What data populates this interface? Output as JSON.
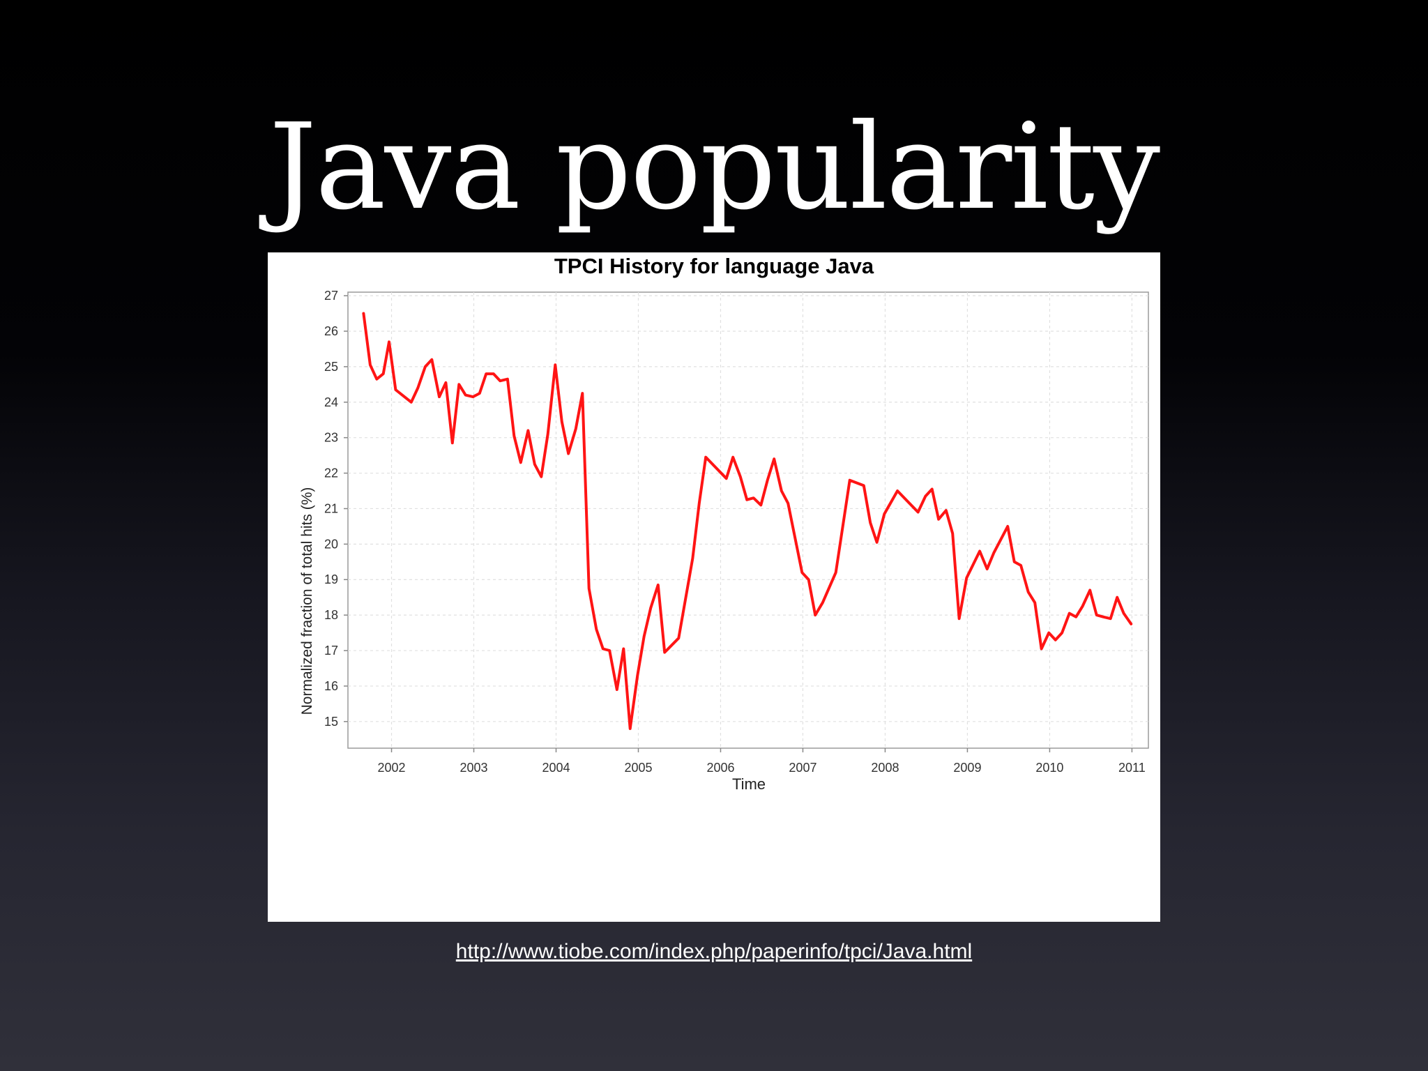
{
  "slide": {
    "title": "Java popularity",
    "source_link": "http://www.tiobe.com/index.php/paperinfo/tpci/Java.html"
  },
  "chart_data": {
    "type": "line",
    "title": "TPCI History for language Java",
    "xlabel": "Time",
    "ylabel": "Normalized fraction of total hits (%)",
    "xlim": [
      2001.47,
      2011.2
    ],
    "ylim": [
      14.25,
      27.1
    ],
    "xticks": [
      2002,
      2003,
      2004,
      2005,
      2006,
      2007,
      2008,
      2009,
      2010,
      2011
    ],
    "yticks": [
      15,
      16,
      17,
      18,
      19,
      20,
      21,
      22,
      23,
      24,
      25,
      26,
      27
    ],
    "grid": true,
    "line_color": "#ff1414",
    "series": [
      {
        "x": [
          2001.66,
          2001.74,
          2001.82,
          2001.9,
          2001.97,
          2002.05,
          2002.13,
          2002.24,
          2002.32,
          2002.41,
          2002.49,
          2002.58,
          2002.66,
          2002.74,
          2002.82,
          2002.9,
          2002.99,
          2003.07,
          2003.15,
          2003.24,
          2003.32,
          2003.41,
          2003.49,
          2003.57,
          2003.66,
          2003.74,
          2003.82,
          2003.9,
          2003.99,
          2004.07,
          2004.15,
          2004.24,
          2004.32,
          2004.4,
          2004.49,
          2004.57,
          2004.65,
          2004.74,
          2004.82,
          2004.9,
          2004.99,
          2005.07,
          2005.15,
          2005.24,
          2005.32,
          2005.49,
          2005.66,
          2005.74,
          2005.82,
          2006.07,
          2006.15,
          2006.24,
          2006.32,
          2006.4,
          2006.49,
          2006.57,
          2006.65,
          2006.74,
          2006.82,
          2006.99,
          2007.07,
          2007.15,
          2007.24,
          2007.4,
          2007.57,
          2007.74,
          2007.82,
          2007.9,
          2007.99,
          2008.15,
          2008.4,
          2008.49,
          2008.57,
          2008.65,
          2008.74,
          2008.82,
          2008.9,
          2008.99,
          2009.15,
          2009.24,
          2009.32,
          2009.49,
          2009.57,
          2009.65,
          2009.74,
          2009.82,
          2009.9,
          2009.99,
          2010.07,
          2010.15,
          2010.24,
          2010.32,
          2010.4,
          2010.49,
          2010.57,
          2010.65,
          2010.74,
          2010.82,
          2010.9,
          2010.99
        ],
        "values": [
          26.5,
          25.05,
          24.65,
          24.8,
          25.7,
          24.35,
          24.2,
          24.0,
          24.4,
          25.0,
          25.2,
          24.15,
          24.55,
          22.85,
          24.5,
          24.2,
          24.15,
          24.25,
          24.8,
          24.8,
          24.6,
          24.65,
          23.05,
          22.3,
          23.2,
          22.25,
          21.9,
          23.1,
          25.05,
          23.45,
          22.55,
          23.25,
          24.25,
          18.75,
          17.6,
          17.05,
          17.0,
          15.9,
          17.05,
          14.8,
          16.3,
          17.4,
          18.2,
          18.85,
          16.95,
          17.35,
          19.6,
          21.15,
          22.45,
          21.85,
          22.45,
          21.9,
          21.25,
          21.3,
          21.1,
          21.8,
          22.4,
          21.5,
          21.15,
          19.2,
          19.0,
          18.0,
          18.35,
          19.2,
          21.8,
          21.65,
          20.6,
          20.05,
          20.85,
          21.5,
          20.9,
          21.35,
          21.55,
          20.7,
          20.95,
          20.3,
          17.9,
          19.05,
          19.8,
          19.3,
          19.75,
          20.5,
          19.5,
          19.4,
          18.65,
          18.35,
          17.05,
          17.5,
          17.3,
          17.5,
          18.05,
          17.95,
          18.25,
          18.7,
          18.0,
          17.95,
          17.9,
          18.5,
          18.05,
          17.75
        ]
      }
    ]
  }
}
